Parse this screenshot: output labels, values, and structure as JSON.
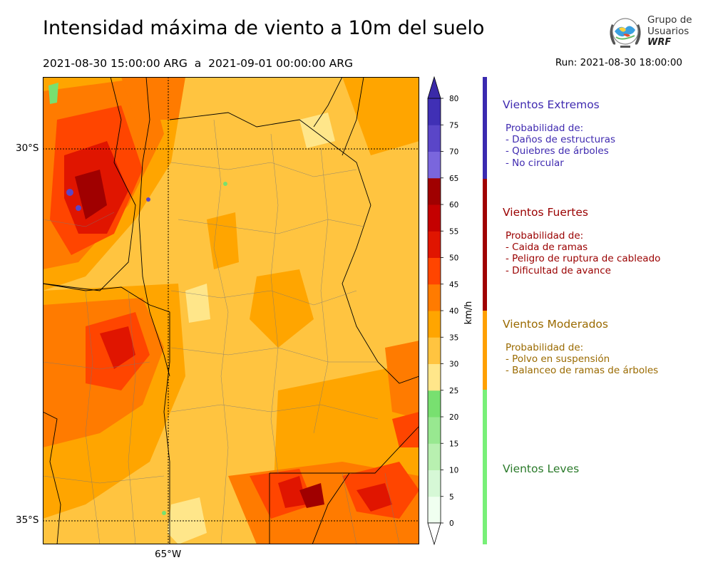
{
  "header": {
    "title": "Intensidad máxima de viento a 10m del suelo",
    "subtitle": "2021-08-30 15:00:00 ARG  a  2021-09-01 00:00:00 ARG",
    "run": "Run: 2021-08-30 18:00:00"
  },
  "logo": {
    "line1": "Grupo de",
    "line2": "Usuarios",
    "line3": "WRF"
  },
  "map": {
    "lat_labels": [
      "30°S",
      "35°S"
    ],
    "lon_labels": [
      "65°W"
    ]
  },
  "colorbar": {
    "unit_label": "km/h",
    "ticks": [
      "0",
      "5",
      "10",
      "15",
      "20",
      "25",
      "30",
      "35",
      "40",
      "45",
      "50",
      "55",
      "60",
      "65",
      "70",
      "75",
      "80"
    ],
    "colors": [
      "#f0fff0",
      "#d6f8d6",
      "#b8f0b0",
      "#98e890",
      "#78e070",
      "#ffe68a",
      "#ffc440",
      "#ffa500",
      "#ff7b00",
      "#ff4500",
      "#e01500",
      "#c40000",
      "#a00000",
      "#7a66dd",
      "#5a46c8",
      "#4030b5",
      "#3a2aa8"
    ],
    "extend_low_color": "#ffffff",
    "extend_high_color": "#3a2aa8"
  },
  "categories": [
    {
      "title": "Vientos Extremos",
      "lines": [
        "Probabilidad de:",
        "- Daños de estructuras",
        "- Quiebres de árboles",
        "- No circular"
      ],
      "color": "#3a2ab0"
    },
    {
      "title": "Vientos Fuertes",
      "lines": [
        "Probabilidad de:",
        "- Caida de ramas",
        "- Peligro de ruptura de cableado",
        "- Dificultad de avance"
      ],
      "color": "#a00000"
    },
    {
      "title": "Vientos Moderados",
      "lines": [
        "Probabilidad de:",
        "- Polvo en suspensión",
        "- Balanceo de ramas de árboles"
      ],
      "color": "#ffa000"
    },
    {
      "title": "Vientos Leves",
      "lines": [],
      "color": "#78f078"
    }
  ]
}
